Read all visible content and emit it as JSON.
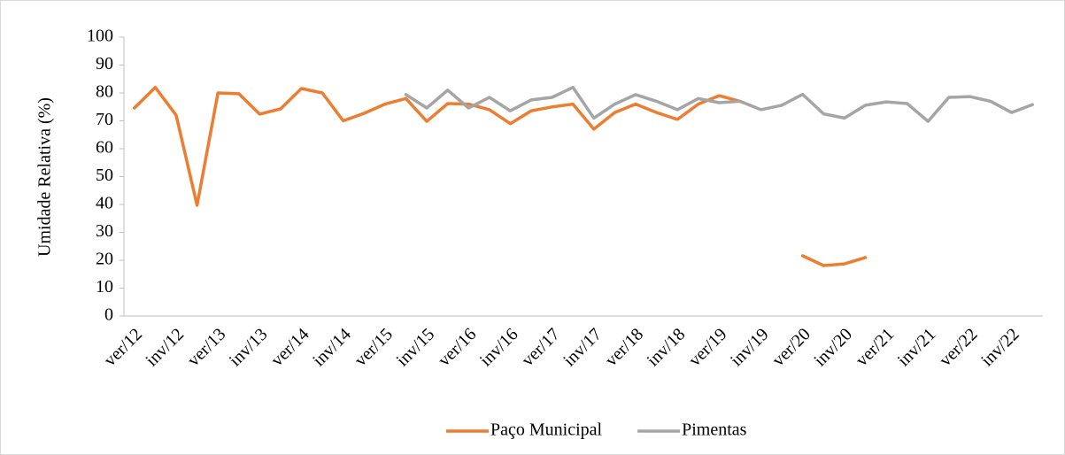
{
  "chart_data": {
    "type": "line",
    "ylabel": "Umidade Relativa (%)",
    "categories": [
      "ver/12",
      null,
      "inv/12",
      null,
      "ver/13",
      null,
      "inv/13",
      null,
      "ver/14",
      null,
      "inv/14",
      null,
      "ver/15",
      null,
      "inv/15",
      null,
      "ver/16",
      null,
      "inv/16",
      null,
      "ver/17",
      null,
      "inv/17",
      null,
      "ver/18",
      null,
      "inv/18",
      null,
      "ver/19",
      null,
      "inv/19",
      null,
      "ver/20",
      null,
      "inv/20",
      null,
      "ver/21",
      null,
      "inv/21",
      null,
      "ver/22",
      null,
      "inv/22",
      null
    ],
    "series": [
      {
        "name": "Paço Municipal",
        "color": "#ed7d31",
        "values": [
          74.6,
          82,
          72,
          39.7,
          80,
          79.7,
          72.4,
          74.3,
          81.6,
          80,
          70,
          72.7,
          76,
          78,
          69.8,
          76.2,
          76,
          74,
          69,
          73.6,
          75,
          76,
          67,
          73,
          76,
          73,
          70.5,
          76,
          79,
          77,
          null,
          null,
          21.6,
          18.1,
          18.7,
          21,
          null,
          null,
          null,
          null,
          null,
          null,
          null,
          null
        ]
      },
      {
        "name": "Pimentas",
        "color": "#a5a5a5",
        "values": [
          null,
          null,
          null,
          null,
          null,
          null,
          null,
          null,
          null,
          null,
          null,
          null,
          null,
          79.4,
          74.6,
          81,
          74.6,
          78.4,
          73.6,
          77.5,
          78.4,
          82,
          71,
          76,
          79.4,
          77,
          74,
          78,
          76.5,
          77,
          74,
          75.6,
          79.5,
          72.5,
          71,
          75.6,
          76.8,
          76.2,
          69.8,
          78.4,
          78.7,
          77,
          73,
          75.8
        ]
      }
    ],
    "ylim": [
      0,
      100
    ],
    "yticks": [
      0,
      10,
      20,
      30,
      40,
      50,
      60,
      70,
      80,
      90,
      100
    ],
    "legend": "bottom"
  }
}
